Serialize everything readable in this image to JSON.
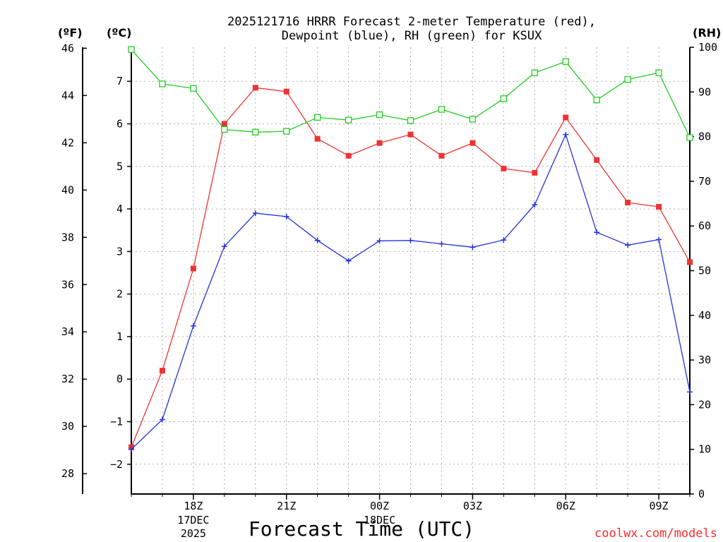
{
  "chart_data": {
    "type": "line",
    "title_lines": [
      "2025121716 HRRR Forecast 2-meter Temperature (red),",
      "Dewpoint (blue), RH (green) for KSUX"
    ],
    "xlabel": "Forecast Time (UTC)",
    "credit": "coolwx.com/models",
    "units": {
      "fahrenheit": "(ºF)",
      "celsius": "(ºC)",
      "rh": "(RH)"
    },
    "x_hours": [
      16,
      17,
      18,
      19,
      20,
      21,
      22,
      23,
      24,
      25,
      26,
      27,
      28,
      29,
      30,
      31,
      32,
      33,
      34
    ],
    "xlim": [
      16,
      34
    ],
    "x_ticks": [
      {
        "hour": 18,
        "label": "18Z",
        "sub": [
          "17DEC",
          "2025"
        ]
      },
      {
        "hour": 21,
        "label": "21Z",
        "sub": []
      },
      {
        "hour": 24,
        "label": "00Z",
        "sub": [
          "18DEC"
        ]
      },
      {
        "hour": 27,
        "label": "03Z",
        "sub": []
      },
      {
        "hour": 30,
        "label": "06Z",
        "sub": []
      },
      {
        "hour": 33,
        "label": "09Z",
        "sub": []
      }
    ],
    "celsius_axis": {
      "range": [
        -2.7,
        7.8
      ],
      "ticks": [
        -2,
        -1,
        0,
        1,
        2,
        3,
        4,
        5,
        6,
        7
      ],
      "tick_labels": [
        "−2",
        "−1",
        "0",
        "1",
        "2",
        "3",
        "4",
        "5",
        "6",
        "7"
      ]
    },
    "fahrenheit_axis": {
      "ticks": [
        28,
        30,
        32,
        34,
        36,
        38,
        40,
        42,
        44,
        46
      ],
      "tick_labels": [
        "28",
        "30",
        "32",
        "34",
        "36",
        "38",
        "40",
        "42",
        "44",
        "46"
      ]
    },
    "rh_axis": {
      "range": [
        0,
        100
      ],
      "ticks": [
        0,
        10,
        20,
        30,
        40,
        50,
        60,
        70,
        80,
        90,
        100
      ],
      "tick_labels": [
        "0",
        "10",
        "20",
        "30",
        "40",
        "50",
        "60",
        "70",
        "80",
        "90",
        "100"
      ]
    },
    "series": [
      {
        "name": "Temperature",
        "axis": "celsius",
        "color": "#ee3333",
        "marker": "square",
        "values": [
          -1.6,
          0.2,
          2.6,
          6.0,
          6.85,
          6.76,
          5.65,
          5.25,
          5.55,
          5.75,
          5.25,
          5.55,
          4.95,
          4.85,
          6.15,
          5.15,
          4.15,
          4.05,
          2.75
        ]
      },
      {
        "name": "Dewpoint",
        "axis": "celsius",
        "color": "#2233dd",
        "marker": "plus",
        "values": [
          -1.65,
          -0.95,
          1.25,
          3.12,
          3.9,
          3.82,
          3.26,
          2.78,
          3.25,
          3.26,
          3.18,
          3.1,
          3.27,
          4.1,
          5.75,
          3.45,
          3.15,
          3.28,
          -0.3
        ]
      },
      {
        "name": "RH",
        "axis": "rh",
        "color": "#22cc22",
        "marker": "open-square",
        "values": [
          99.5,
          91.8,
          90.8,
          81.6,
          81.0,
          81.2,
          84.3,
          83.7,
          84.9,
          83.6,
          86.1,
          83.9,
          88.5,
          94.3,
          96.8,
          88.2,
          92.8,
          94.3,
          79.8
        ]
      }
    ]
  }
}
